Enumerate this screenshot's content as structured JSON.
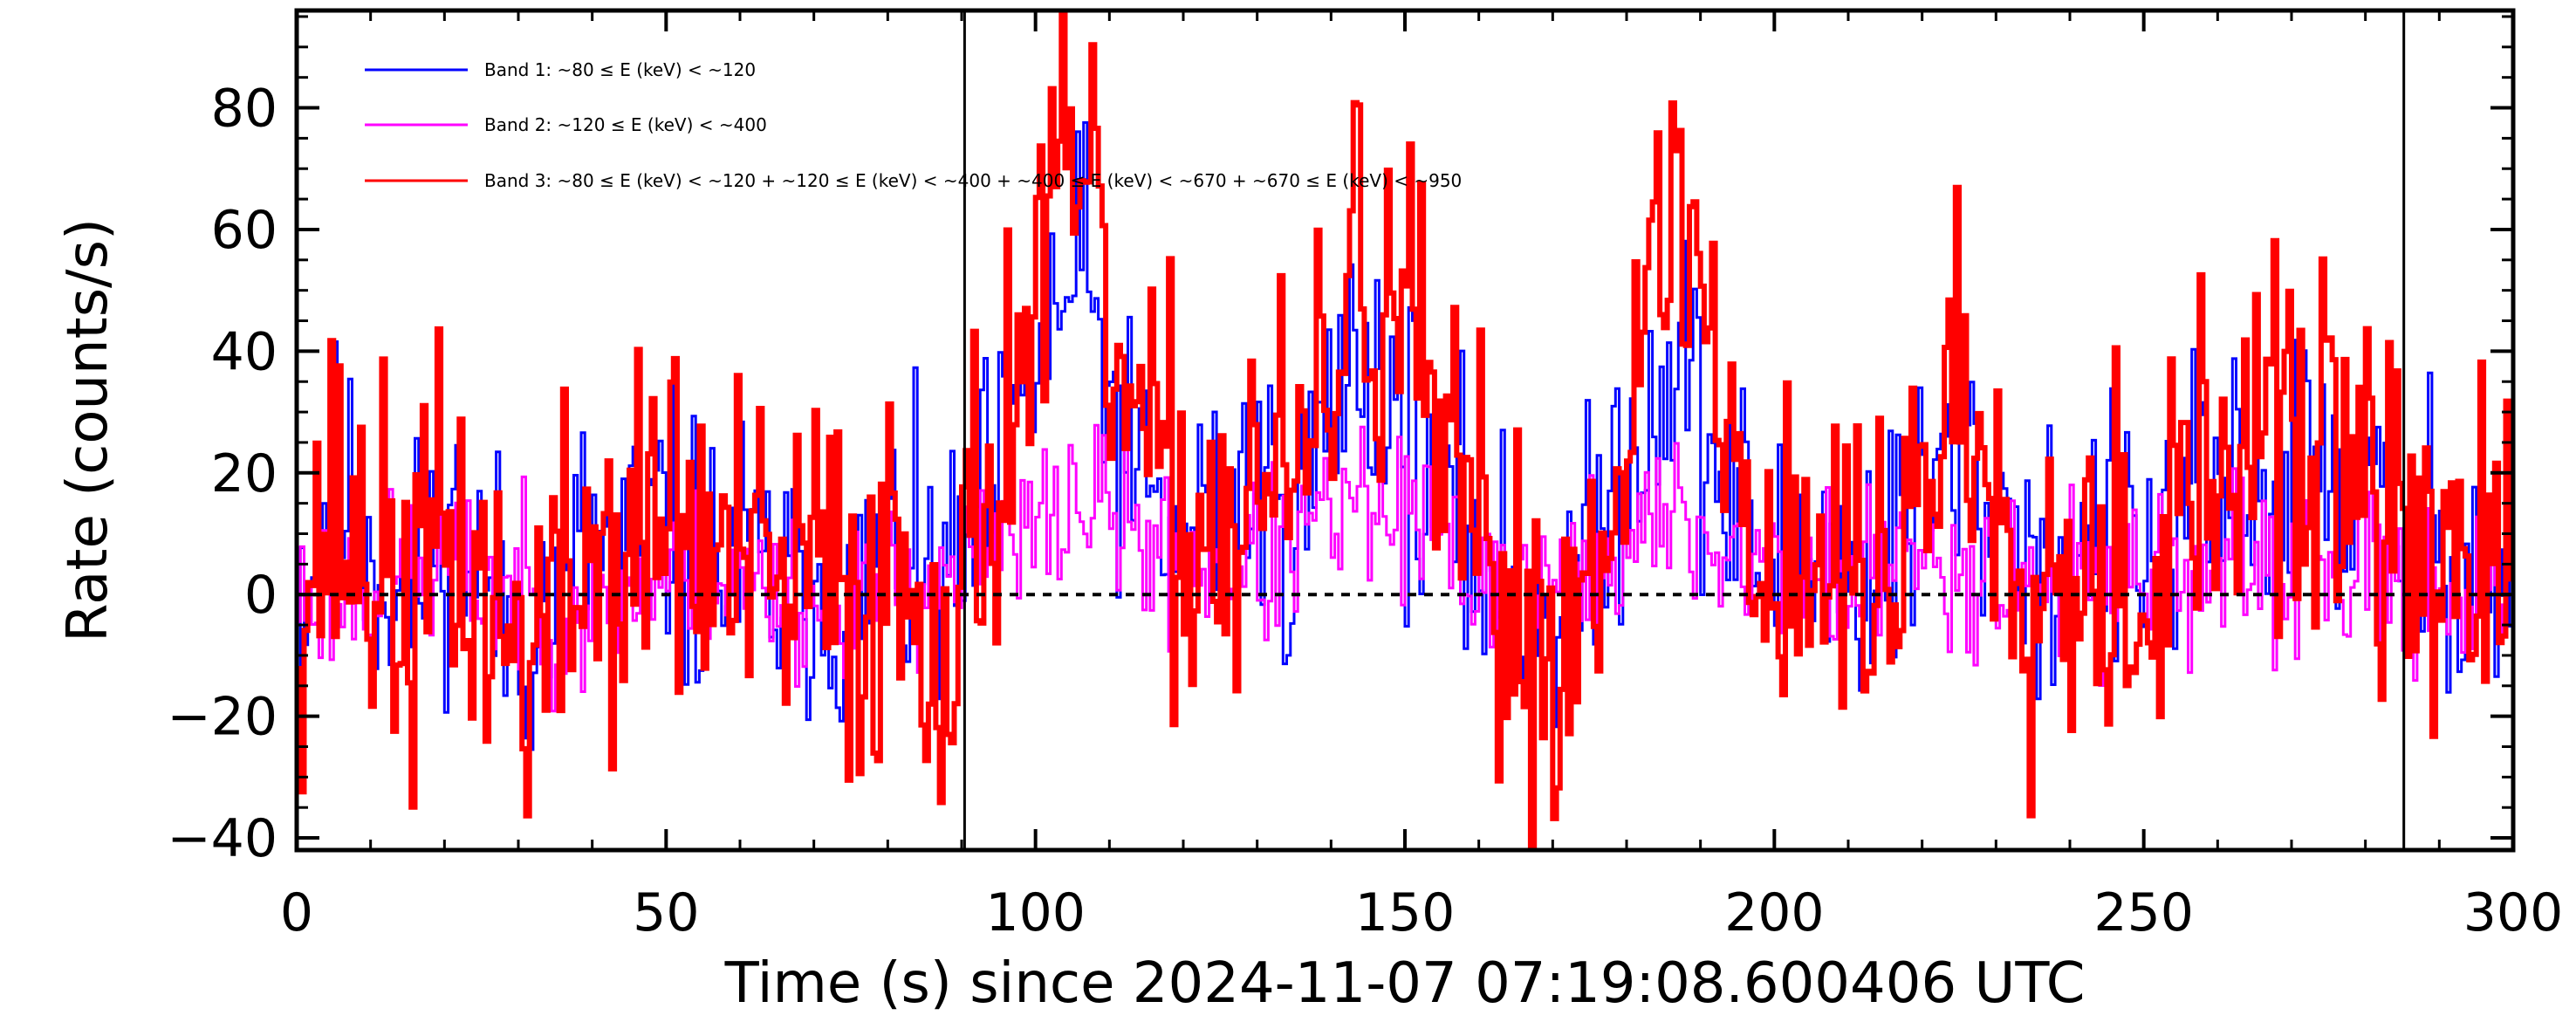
{
  "chart_data": {
    "type": "line",
    "title": "",
    "xlabel": "Time (s) since 2024-11-07 07:19:08.600406 UTC",
    "ylabel": "Rate (counts/s)",
    "xlim": [
      0,
      300
    ],
    "ylim": [
      -42,
      96
    ],
    "x_ticks": [
      0,
      50,
      100,
      150,
      200,
      250,
      300
    ],
    "x_tick_labels": [
      "0",
      "50",
      "100",
      "150",
      "200",
      "250",
      "300"
    ],
    "y_ticks": [
      -40,
      -20,
      0,
      20,
      40,
      60,
      80
    ],
    "y_tick_labels": [
      "−40",
      "−20",
      "0",
      "20",
      "40",
      "60",
      "80"
    ],
    "zero_line": 0,
    "interval_markers": [
      90.4,
      285.2
    ],
    "legend_position": "top-left",
    "bin_width_s": 0.5,
    "series": [
      {
        "name": "Band 1: ~80 ≤ E (keV) < ~120",
        "color": "#0000ff",
        "stroke": 3,
        "control": [
          [
            0,
            2
          ],
          [
            5,
            18
          ],
          [
            10,
            8
          ],
          [
            15,
            -2
          ],
          [
            20,
            14
          ],
          [
            25,
            4
          ],
          [
            30,
            -6
          ],
          [
            35,
            -2
          ],
          [
            40,
            10
          ],
          [
            45,
            6
          ],
          [
            50,
            12
          ],
          [
            55,
            4
          ],
          [
            60,
            6
          ],
          [
            65,
            0
          ],
          [
            70,
            4
          ],
          [
            75,
            -2
          ],
          [
            80,
            6
          ],
          [
            85,
            2
          ],
          [
            90,
            0
          ],
          [
            92,
            12
          ],
          [
            95,
            16
          ],
          [
            98,
            30
          ],
          [
            102,
            42
          ],
          [
            106,
            55
          ],
          [
            109,
            38
          ],
          [
            112,
            22
          ],
          [
            116,
            14
          ],
          [
            120,
            8
          ],
          [
            125,
            14
          ],
          [
            130,
            18
          ],
          [
            135,
            12
          ],
          [
            140,
            28
          ],
          [
            143,
            42
          ],
          [
            146,
            38
          ],
          [
            149,
            30
          ],
          [
            152,
            20
          ],
          [
            155,
            12
          ],
          [
            160,
            8
          ],
          [
            165,
            2
          ],
          [
            170,
            -2
          ],
          [
            175,
            4
          ],
          [
            178,
            18
          ],
          [
            182,
            28
          ],
          [
            186,
            40
          ],
          [
            188,
            38
          ],
          [
            192,
            18
          ],
          [
            196,
            12
          ],
          [
            200,
            4
          ],
          [
            205,
            10
          ],
          [
            210,
            2
          ],
          [
            215,
            6
          ],
          [
            220,
            14
          ],
          [
            224,
            22
          ],
          [
            228,
            18
          ],
          [
            232,
            12
          ],
          [
            236,
            6
          ],
          [
            240,
            4
          ],
          [
            245,
            8
          ],
          [
            250,
            4
          ],
          [
            255,
            12
          ],
          [
            260,
            16
          ],
          [
            265,
            20
          ],
          [
            270,
            18
          ],
          [
            275,
            22
          ],
          [
            280,
            16
          ],
          [
            284,
            12
          ],
          [
            288,
            8
          ],
          [
            292,
            10
          ],
          [
            296,
            4
          ],
          [
            300,
            -4
          ]
        ],
        "noise": 12,
        "seed": 11
      },
      {
        "name": "Band 2: ~120 ≤ E (keV) < ~400",
        "color": "#ff00ff",
        "stroke": 3,
        "control": [
          [
            0,
            0
          ],
          [
            10,
            2
          ],
          [
            20,
            4
          ],
          [
            30,
            0
          ],
          [
            40,
            -2
          ],
          [
            50,
            4
          ],
          [
            60,
            2
          ],
          [
            70,
            0
          ],
          [
            80,
            2
          ],
          [
            90,
            4
          ],
          [
            95,
            6
          ],
          [
            100,
            10
          ],
          [
            105,
            16
          ],
          [
            110,
            14
          ],
          [
            115,
            8
          ],
          [
            120,
            4
          ],
          [
            125,
            6
          ],
          [
            130,
            4
          ],
          [
            135,
            8
          ],
          [
            140,
            12
          ],
          [
            145,
            14
          ],
          [
            150,
            12
          ],
          [
            155,
            8
          ],
          [
            160,
            4
          ],
          [
            165,
            2
          ],
          [
            170,
            0
          ],
          [
            175,
            4
          ],
          [
            180,
            8
          ],
          [
            185,
            12
          ],
          [
            190,
            10
          ],
          [
            195,
            6
          ],
          [
            200,
            4
          ],
          [
            210,
            2
          ],
          [
            220,
            6
          ],
          [
            230,
            4
          ],
          [
            240,
            2
          ],
          [
            250,
            4
          ],
          [
            260,
            2
          ],
          [
            270,
            4
          ],
          [
            280,
            2
          ],
          [
            290,
            2
          ],
          [
            300,
            0
          ]
        ],
        "noise": 7,
        "seed": 23
      },
      {
        "name": "Band 3: ~80 ≤ E (keV) < ~120 + ~120 ≤ E (keV) < ~400 + ~400 ≤ E (keV) < ~670 + ~670 ≤ E (keV) < ~950",
        "color": "#ff0000",
        "stroke": 6,
        "control": [
          [
            0,
            2
          ],
          [
            5,
            14
          ],
          [
            10,
            6
          ],
          [
            15,
            -4
          ],
          [
            20,
            10
          ],
          [
            25,
            0
          ],
          [
            30,
            -10
          ],
          [
            35,
            -4
          ],
          [
            40,
            8
          ],
          [
            45,
            4
          ],
          [
            50,
            16
          ],
          [
            55,
            6
          ],
          [
            60,
            4
          ],
          [
            65,
            -2
          ],
          [
            70,
            6
          ],
          [
            75,
            -4
          ],
          [
            80,
            6
          ],
          [
            85,
            0
          ],
          [
            90,
            -8
          ],
          [
            92,
            14
          ],
          [
            95,
            22
          ],
          [
            98,
            40
          ],
          [
            102,
            58
          ],
          [
            105,
            70
          ],
          [
            108,
            55
          ],
          [
            111,
            38
          ],
          [
            114,
            24
          ],
          [
            118,
            14
          ],
          [
            122,
            12
          ],
          [
            126,
            10
          ],
          [
            130,
            20
          ],
          [
            135,
            16
          ],
          [
            140,
            34
          ],
          [
            143,
            56
          ],
          [
            146,
            46
          ],
          [
            149,
            52
          ],
          [
            152,
            34
          ],
          [
            155,
            18
          ],
          [
            160,
            6
          ],
          [
            165,
            -4
          ],
          [
            170,
            -10
          ],
          [
            175,
            2
          ],
          [
            178,
            26
          ],
          [
            182,
            40
          ],
          [
            185,
            52
          ],
          [
            188,
            68
          ],
          [
            190,
            50
          ],
          [
            193,
            28
          ],
          [
            196,
            18
          ],
          [
            200,
            4
          ],
          [
            205,
            8
          ],
          [
            210,
            0
          ],
          [
            215,
            4
          ],
          [
            220,
            18
          ],
          [
            224,
            36
          ],
          [
            228,
            24
          ],
          [
            232,
            14
          ],
          [
            236,
            4
          ],
          [
            240,
            6
          ],
          [
            245,
            10
          ],
          [
            250,
            0
          ],
          [
            255,
            14
          ],
          [
            260,
            18
          ],
          [
            265,
            28
          ],
          [
            270,
            22
          ],
          [
            275,
            26
          ],
          [
            280,
            18
          ],
          [
            284,
            8
          ],
          [
            288,
            10
          ],
          [
            292,
            6
          ],
          [
            296,
            4
          ],
          [
            300,
            -6
          ]
        ],
        "noise": 16,
        "seed": 37
      }
    ]
  }
}
